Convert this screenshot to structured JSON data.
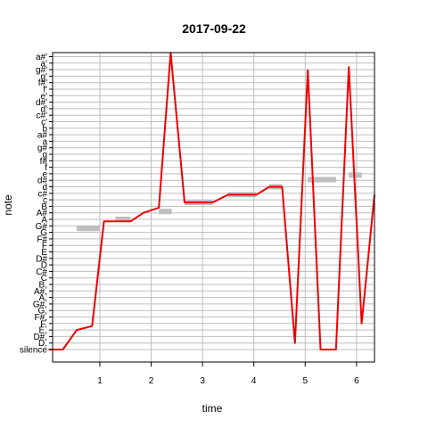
{
  "chart_data": {
    "type": "line",
    "title": "2017-09-22",
    "xlabel": "time",
    "ylabel": "note",
    "xlim": [
      0,
      6.35
    ],
    "x_ticks": [
      1,
      2,
      3,
      4,
      5,
      6
    ],
    "y_tick_labels": [
      "silence",
      "D,",
      "D#,",
      "E,",
      "F,",
      "F#,",
      "G,",
      "G#,",
      "A,",
      "A#,",
      "B,",
      "C",
      "C#",
      "D",
      "D#",
      "E",
      "F",
      "F#",
      "G",
      "G#",
      "A",
      "A#",
      "B",
      "c",
      "c#",
      "d",
      "d#",
      "e",
      "f",
      "f#",
      "g",
      "g#",
      "a",
      "a#",
      "b",
      "c'",
      "c#'",
      "d'",
      "d#'",
      "e'",
      "f'",
      "f#'",
      "g'",
      "g#'",
      "a'",
      "a#'",
      "b'"
    ],
    "grid": true,
    "colors": {
      "pitch_line": "#ee0000",
      "reference": "#bebebe",
      "grid": "#bebebe",
      "frame": "#000000"
    },
    "series": [
      {
        "type": "line",
        "x": [
          0,
          0.28,
          0.55,
          0.85,
          1.08,
          1.3,
          1.6,
          1.85,
          2.15,
          2.38,
          2.65,
          2.9,
          3.2,
          3.5,
          3.8,
          4.05,
          4.3,
          4.55,
          4.8,
          5.05,
          5.3,
          5.6,
          5.85,
          6.1,
          6.35
        ],
        "y": [
          0,
          0,
          3,
          3.6,
          19.7,
          19.7,
          19.7,
          21,
          21.8,
          45.6,
          22.6,
          22.6,
          22.6,
          23.8,
          23.8,
          23.8,
          25,
          25,
          1,
          42.9,
          0,
          0,
          43.4,
          4,
          23.8
        ]
      },
      {
        "type": "segments",
        "segments": [
          {
            "x0": 0.55,
            "x1": 1.0,
            "y": 18.6
          },
          {
            "x0": 1.3,
            "x1": 1.6,
            "y": 20
          },
          {
            "x0": 2.15,
            "x1": 2.4,
            "y": 21.2
          },
          {
            "x0": 2.65,
            "x1": 3.2,
            "y": 22.6
          },
          {
            "x0": 3.5,
            "x1": 4.05,
            "y": 23.8
          },
          {
            "x0": 4.3,
            "x1": 4.55,
            "y": 25
          },
          {
            "x0": 5.05,
            "x1": 5.6,
            "y": 26.1
          },
          {
            "x0": 5.85,
            "x1": 6.1,
            "y": 26.8
          }
        ]
      }
    ]
  }
}
